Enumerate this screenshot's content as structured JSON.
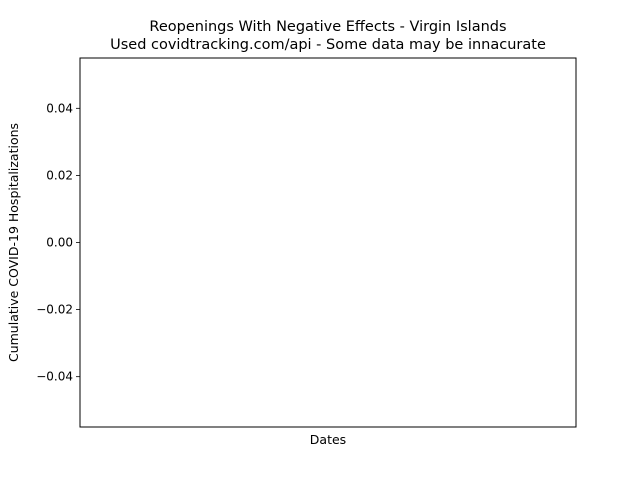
{
  "chart_data": {
    "type": "line",
    "title": "Reopenings With Negative Effects - Virgin Islands",
    "subtitle": "Used covidtracking.com/api - Some data may be innacurate",
    "xlabel": "Dates",
    "ylabel": "Cumulative COVID-19 Hospitalizations",
    "ylim": [
      -0.055,
      0.055
    ],
    "yticks": [
      {
        "value": 0.04,
        "label": "0.04"
      },
      {
        "value": 0.02,
        "label": "0.02"
      },
      {
        "value": 0.0,
        "label": "0.00"
      },
      {
        "value": -0.02,
        "label": "−0.02"
      },
      {
        "value": -0.04,
        "label": "−0.04"
      }
    ],
    "xticks": [],
    "series": [],
    "grid": false,
    "legend": "none"
  }
}
